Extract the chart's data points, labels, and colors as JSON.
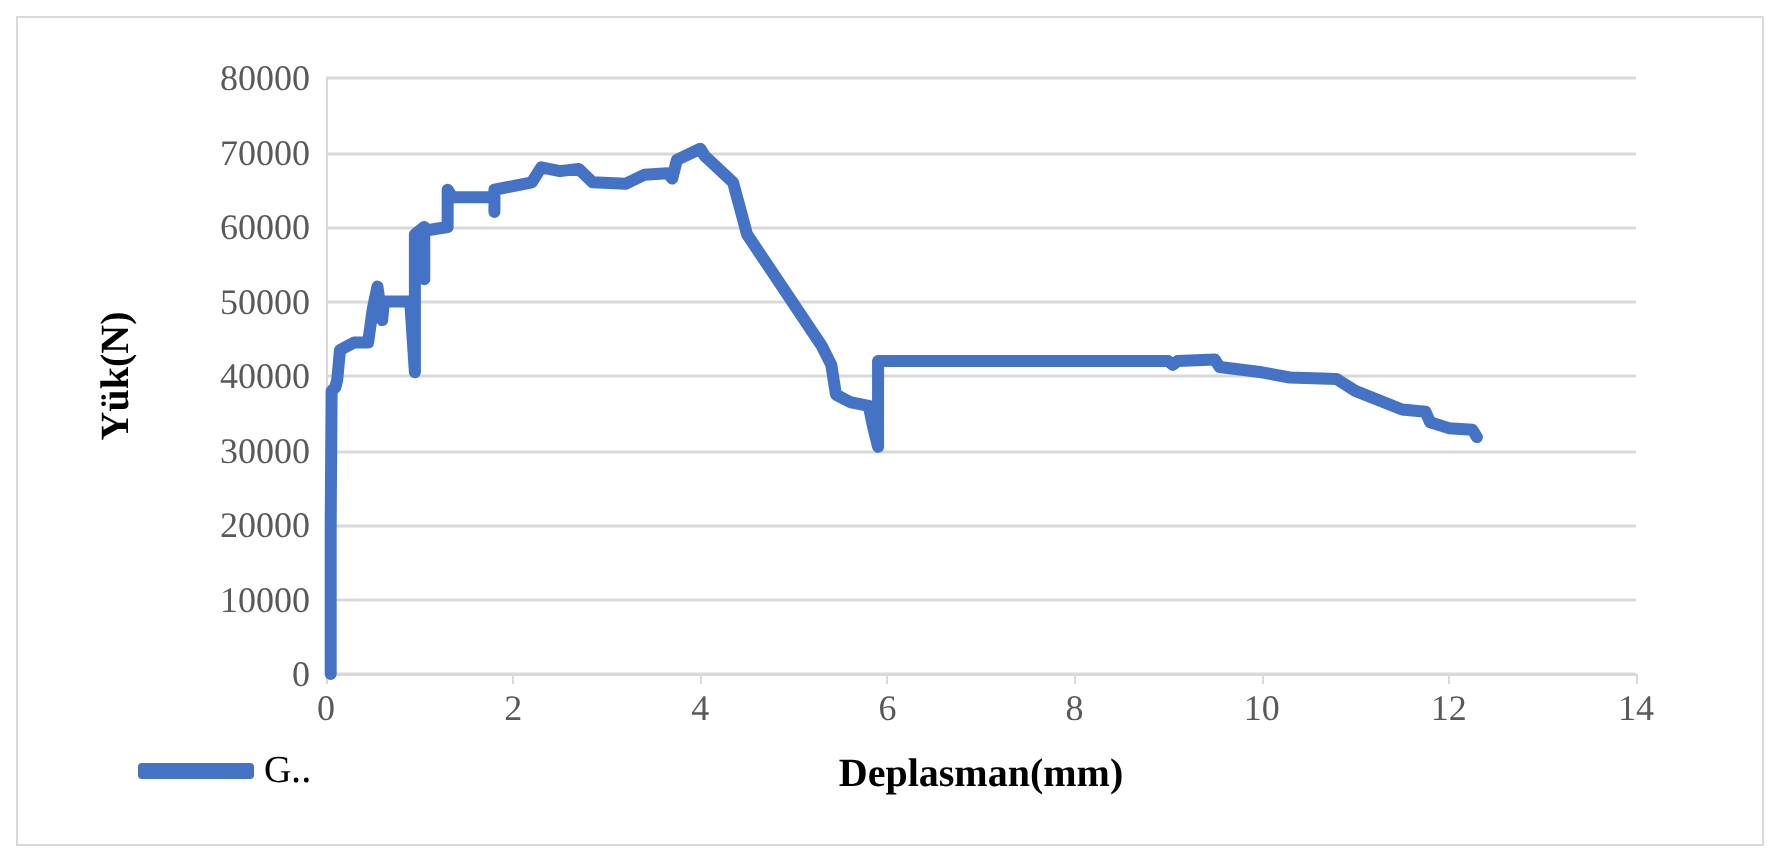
{
  "chart_data": {
    "type": "line",
    "xlabel": "Deplasman(mm)",
    "ylabel": "Yük(N)",
    "xlim": [
      0,
      14
    ],
    "xticks": [
      0,
      2,
      4,
      6,
      8,
      10,
      12,
      14
    ],
    "ylim": [
      0,
      80000
    ],
    "yticks": [
      0,
      10000,
      20000,
      30000,
      40000,
      50000,
      60000,
      70000,
      80000
    ],
    "grid": "y",
    "legend": "bottom left",
    "marker": "none",
    "line_style": "solid",
    "series": [
      {
        "name": "G‥",
        "color": "#4472c4",
        "x": [
          0.05,
          0.05,
          0.06,
          0.1,
          0.12,
          0.15,
          0.3,
          0.45,
          0.5,
          0.55,
          0.6,
          0.62,
          0.9,
          0.95,
          0.95,
          1.05,
          1.05,
          1.05,
          1.3,
          1.3,
          1.35,
          1.8,
          1.8,
          1.8,
          2.2,
          2.3,
          2.5,
          2.7,
          2.85,
          3.2,
          3.4,
          3.65,
          3.7,
          3.75,
          4.0,
          4.05,
          4.35,
          4.5,
          5.3,
          5.4,
          5.45,
          5.6,
          5.8,
          5.85,
          5.9,
          5.9,
          9.0,
          9.05,
          9.1,
          9.5,
          9.55,
          10.0,
          10.3,
          10.8,
          11.0,
          11.5,
          11.75,
          11.8,
          12.0,
          12.25,
          12.3
        ],
        "values": [
          0,
          20000,
          38000,
          38500,
          39500,
          43500,
          44500,
          44500,
          49000,
          52000,
          47500,
          50000,
          50000,
          40500,
          59000,
          60000,
          53000,
          59500,
          60000,
          65000,
          64000,
          64000,
          62000,
          65000,
          66000,
          68000,
          67500,
          67800,
          66000,
          65800,
          67000,
          67200,
          66500,
          69000,
          70500,
          69500,
          66000,
          59000,
          44000,
          41500,
          37500,
          36500,
          36000,
          33000,
          30500,
          42000,
          42000,
          41500,
          42000,
          42200,
          41200,
          40500,
          39800,
          39600,
          38000,
          35500,
          35200,
          33800,
          33000,
          32800,
          31800
        ]
      }
    ]
  }
}
